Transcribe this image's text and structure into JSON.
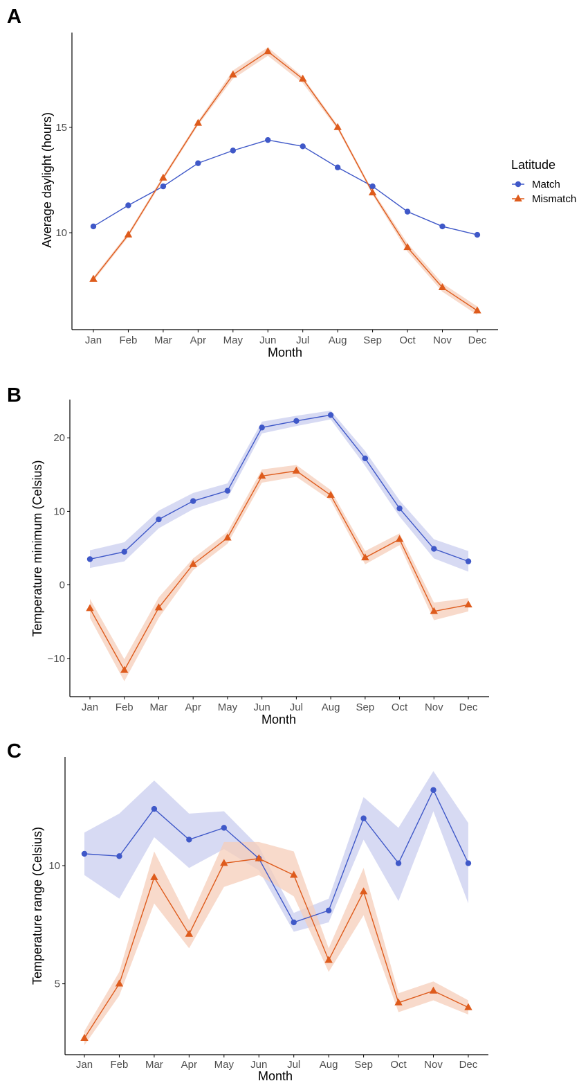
{
  "colors": {
    "match": "#3f58c8",
    "match_band": "#c9cdef",
    "mismatch": "#de5b1c",
    "mismatch_band": "#f6cdb9",
    "axis": "#000000"
  },
  "legend": {
    "title": "Latitude",
    "entries": [
      {
        "series": "Match",
        "shape": "circle"
      },
      {
        "series": "Mismatch",
        "shape": "triangle"
      }
    ]
  },
  "chart_data": [
    {
      "panel": "A",
      "type": "line",
      "xlabel": "Month",
      "ylabel": "Average daylight (hours)",
      "categories": [
        "Jan",
        "Feb",
        "Mar",
        "Apr",
        "May",
        "Jun",
        "Jul",
        "Aug",
        "Sep",
        "Oct",
        "Nov",
        "Dec"
      ],
      "ylim": [
        5.4,
        19.5
      ],
      "yticks": [
        10,
        15
      ],
      "series": [
        {
          "name": "Match",
          "shape": "circle",
          "values": [
            10.3,
            11.3,
            12.2,
            13.3,
            13.9,
            14.4,
            14.1,
            13.1,
            12.2,
            11.0,
            10.3,
            9.9
          ],
          "lower": [
            10.3,
            11.3,
            12.2,
            13.3,
            13.9,
            14.4,
            14.1,
            13.1,
            12.2,
            11.0,
            10.3,
            9.9
          ],
          "upper": [
            10.3,
            11.3,
            12.2,
            13.3,
            13.9,
            14.4,
            14.1,
            13.1,
            12.2,
            11.0,
            10.3,
            9.9
          ]
        },
        {
          "name": "Mismatch",
          "shape": "triangle",
          "values": [
            7.8,
            9.9,
            12.6,
            15.2,
            17.5,
            18.6,
            17.3,
            15.0,
            11.9,
            9.3,
            7.4,
            6.3
          ],
          "lower": [
            7.7,
            9.8,
            12.5,
            15.1,
            17.3,
            18.4,
            17.1,
            14.9,
            11.8,
            9.1,
            7.2,
            6.1
          ],
          "upper": [
            7.9,
            10.0,
            12.7,
            15.3,
            17.7,
            18.8,
            17.4,
            15.1,
            12.0,
            9.5,
            7.6,
            6.5
          ]
        }
      ]
    },
    {
      "panel": "B",
      "type": "line",
      "xlabel": "Month",
      "ylabel": "Temperature minimum (Celsius)",
      "categories": [
        "Jan",
        "Feb",
        "Mar",
        "Apr",
        "May",
        "Jun",
        "Jul",
        "Aug",
        "Sep",
        "Oct",
        "Nov",
        "Dec"
      ],
      "ylim": [
        -15.2,
        25.2
      ],
      "yticks": [
        -10,
        0,
        10,
        20
      ],
      "series": [
        {
          "name": "Match",
          "shape": "circle",
          "values": [
            3.5,
            4.5,
            8.9,
            11.4,
            12.8,
            21.4,
            22.3,
            23.1,
            17.2,
            10.4,
            4.9,
            3.2
          ],
          "lower": [
            2.3,
            3.2,
            7.7,
            10.3,
            11.8,
            20.6,
            21.6,
            22.5,
            16.2,
            9.3,
            3.6,
            1.8
          ],
          "upper": [
            4.7,
            5.8,
            10.1,
            12.5,
            13.8,
            22.2,
            23.0,
            23.7,
            18.2,
            11.5,
            6.2,
            4.6
          ]
        },
        {
          "name": "Mismatch",
          "shape": "triangle",
          "values": [
            -3.2,
            -11.6,
            -3.1,
            2.8,
            6.4,
            14.8,
            15.5,
            12.2,
            3.7,
            6.2,
            -3.6,
            -2.7
          ],
          "lower": [
            -4.5,
            -13.1,
            -4.5,
            2.0,
            5.6,
            13.9,
            14.7,
            11.5,
            2.8,
            5.4,
            -4.8,
            -3.6
          ],
          "upper": [
            -1.9,
            -10.1,
            -1.7,
            3.6,
            7.2,
            15.7,
            16.3,
            12.9,
            4.6,
            7.0,
            -2.4,
            -1.8
          ]
        }
      ]
    },
    {
      "panel": "C",
      "type": "line",
      "xlabel": "Month",
      "ylabel": "Temperature range (Celsius)",
      "categories": [
        "Jan",
        "Feb",
        "Mar",
        "Apr",
        "May",
        "Jun",
        "Jul",
        "Aug",
        "Sep",
        "Oct",
        "Nov",
        "Dec"
      ],
      "ylim": [
        2.0,
        14.6
      ],
      "yticks": [
        5,
        10
      ],
      "series": [
        {
          "name": "Match",
          "shape": "circle",
          "values": [
            10.5,
            10.4,
            12.4,
            11.1,
            11.6,
            10.3,
            7.6,
            8.1,
            12.0,
            10.1,
            13.2,
            10.1
          ],
          "lower": [
            9.6,
            8.6,
            11.2,
            9.9,
            10.7,
            9.8,
            7.2,
            7.6,
            11.1,
            8.5,
            12.3,
            8.4
          ],
          "upper": [
            11.4,
            12.2,
            13.6,
            12.2,
            12.3,
            10.8,
            8.0,
            8.6,
            12.9,
            11.6,
            14.0,
            11.8
          ]
        },
        {
          "name": "Mismatch",
          "shape": "triangle",
          "values": [
            2.7,
            5.0,
            9.5,
            7.1,
            10.1,
            10.3,
            9.6,
            6.0,
            8.9,
            4.2,
            4.7,
            4.0
          ],
          "lower": [
            2.4,
            4.5,
            8.4,
            6.5,
            9.1,
            9.6,
            8.7,
            5.5,
            7.9,
            3.8,
            4.3,
            3.7
          ],
          "upper": [
            3.0,
            5.5,
            10.6,
            7.7,
            11.0,
            11.0,
            10.6,
            6.5,
            9.9,
            4.6,
            5.1,
            4.3
          ]
        }
      ]
    }
  ]
}
